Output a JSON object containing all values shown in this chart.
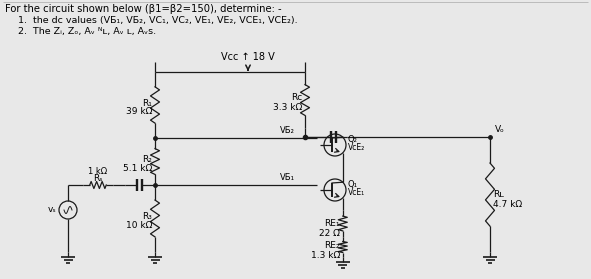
{
  "bg_color": "#e8e8e8",
  "line_color": "#1a1a1a",
  "title_line1": "For the circuit shown below (β1=β2=150), determine: -",
  "title_line2": "1.  the dc values (VБ₁, VБ₂, VС₁, VС₂, VЕ₁, VЕ₂, VСЕ₁, VСЕ₂).",
  "title_line3": "2.  The Zᵢ, Zₒ, Aᵥ ᴺʟ, Aᵥ ʟ, Aᵥs.",
  "vcc_label": "Vᴄᴄ ↑ 18 V",
  "R1_label": "R₁",
  "R1_val": "39 kΩ",
  "Rc_label": "Rᴄ",
  "Rc_val": "3.3 kΩ",
  "R2_label": "R₂",
  "R2_val": "5.1 kΩ",
  "R3_label": "R₃",
  "R3_val": "10 kΩ",
  "Rs_label": "Rₛ",
  "Rs_val": "1 kΩ",
  "RL_label": "Rʟ",
  "RL_val": "4.7 kΩ",
  "RE1_label": "RЕ₁",
  "RE1_val": "22 Ω",
  "RE2_label": "RЕ₂",
  "RE2_val": "1.3 kΩ",
  "VB2_label": "VБ₂",
  "VB1_label": "VБ₁",
  "Q2_label": "Q₂",
  "Q1_label": "Q₁",
  "VCE2_label": "VᴄЕ₂",
  "VCE1_label": "VᴄЕ₁",
  "Vo_label": "Vₒ",
  "Vs_label": "vₛ"
}
